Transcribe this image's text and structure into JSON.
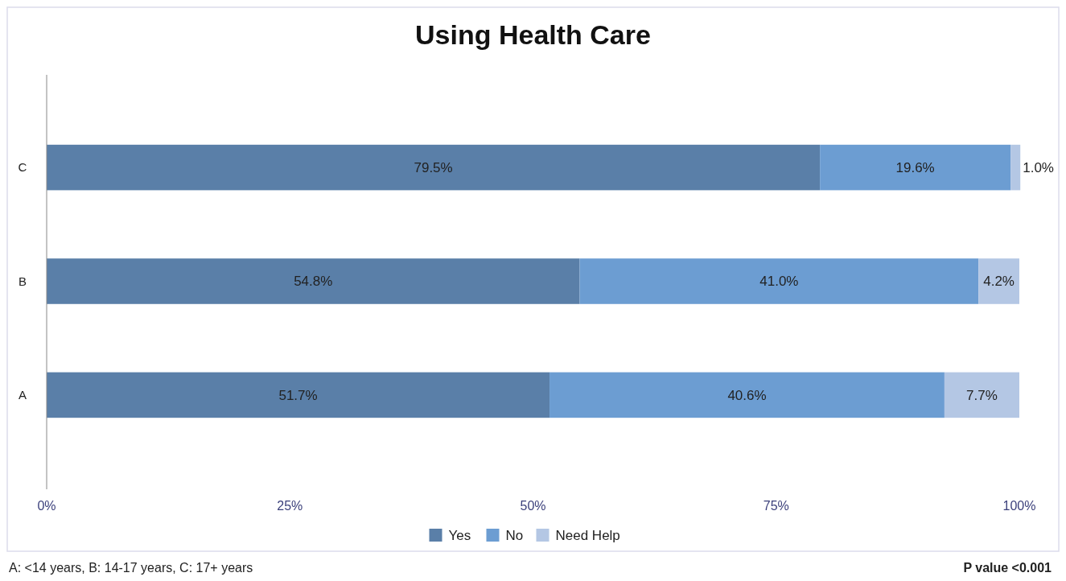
{
  "chart_data": {
    "type": "bar",
    "title": "Using Health Care",
    "orientation": "horizontal",
    "stacked": true,
    "categories": [
      "C",
      "B",
      "A"
    ],
    "series": [
      {
        "name": "Yes",
        "color": "#5a7fa8",
        "values": [
          79.5,
          54.8,
          51.7
        ],
        "value_labels": [
          "79.5%",
          "54.8%",
          "51.7%"
        ]
      },
      {
        "name": "No",
        "color": "#6c9dd2",
        "values": [
          19.6,
          41.0,
          40.6
        ],
        "value_labels": [
          "19.6%",
          "41.0%",
          "40.6%"
        ]
      },
      {
        "name": "Need Help",
        "color": "#b4c7e4",
        "values": [
          1.0,
          4.2,
          7.7
        ],
        "value_labels": [
          "1.0%",
          "4.2%",
          "7.7%"
        ]
      }
    ],
    "xlim": [
      0,
      100
    ],
    "xticks": [
      {
        "value": 0,
        "label": "0%"
      },
      {
        "value": 25,
        "label": "25%"
      },
      {
        "value": 50,
        "label": "50%"
      },
      {
        "value": 75,
        "label": "75%"
      },
      {
        "value": 100,
        "label": "100%"
      }
    ],
    "legend": "bottom",
    "annotations": [
      "A: <14 years, B: 14-17 years, C: 17+ years",
      "P value <0.001"
    ]
  }
}
